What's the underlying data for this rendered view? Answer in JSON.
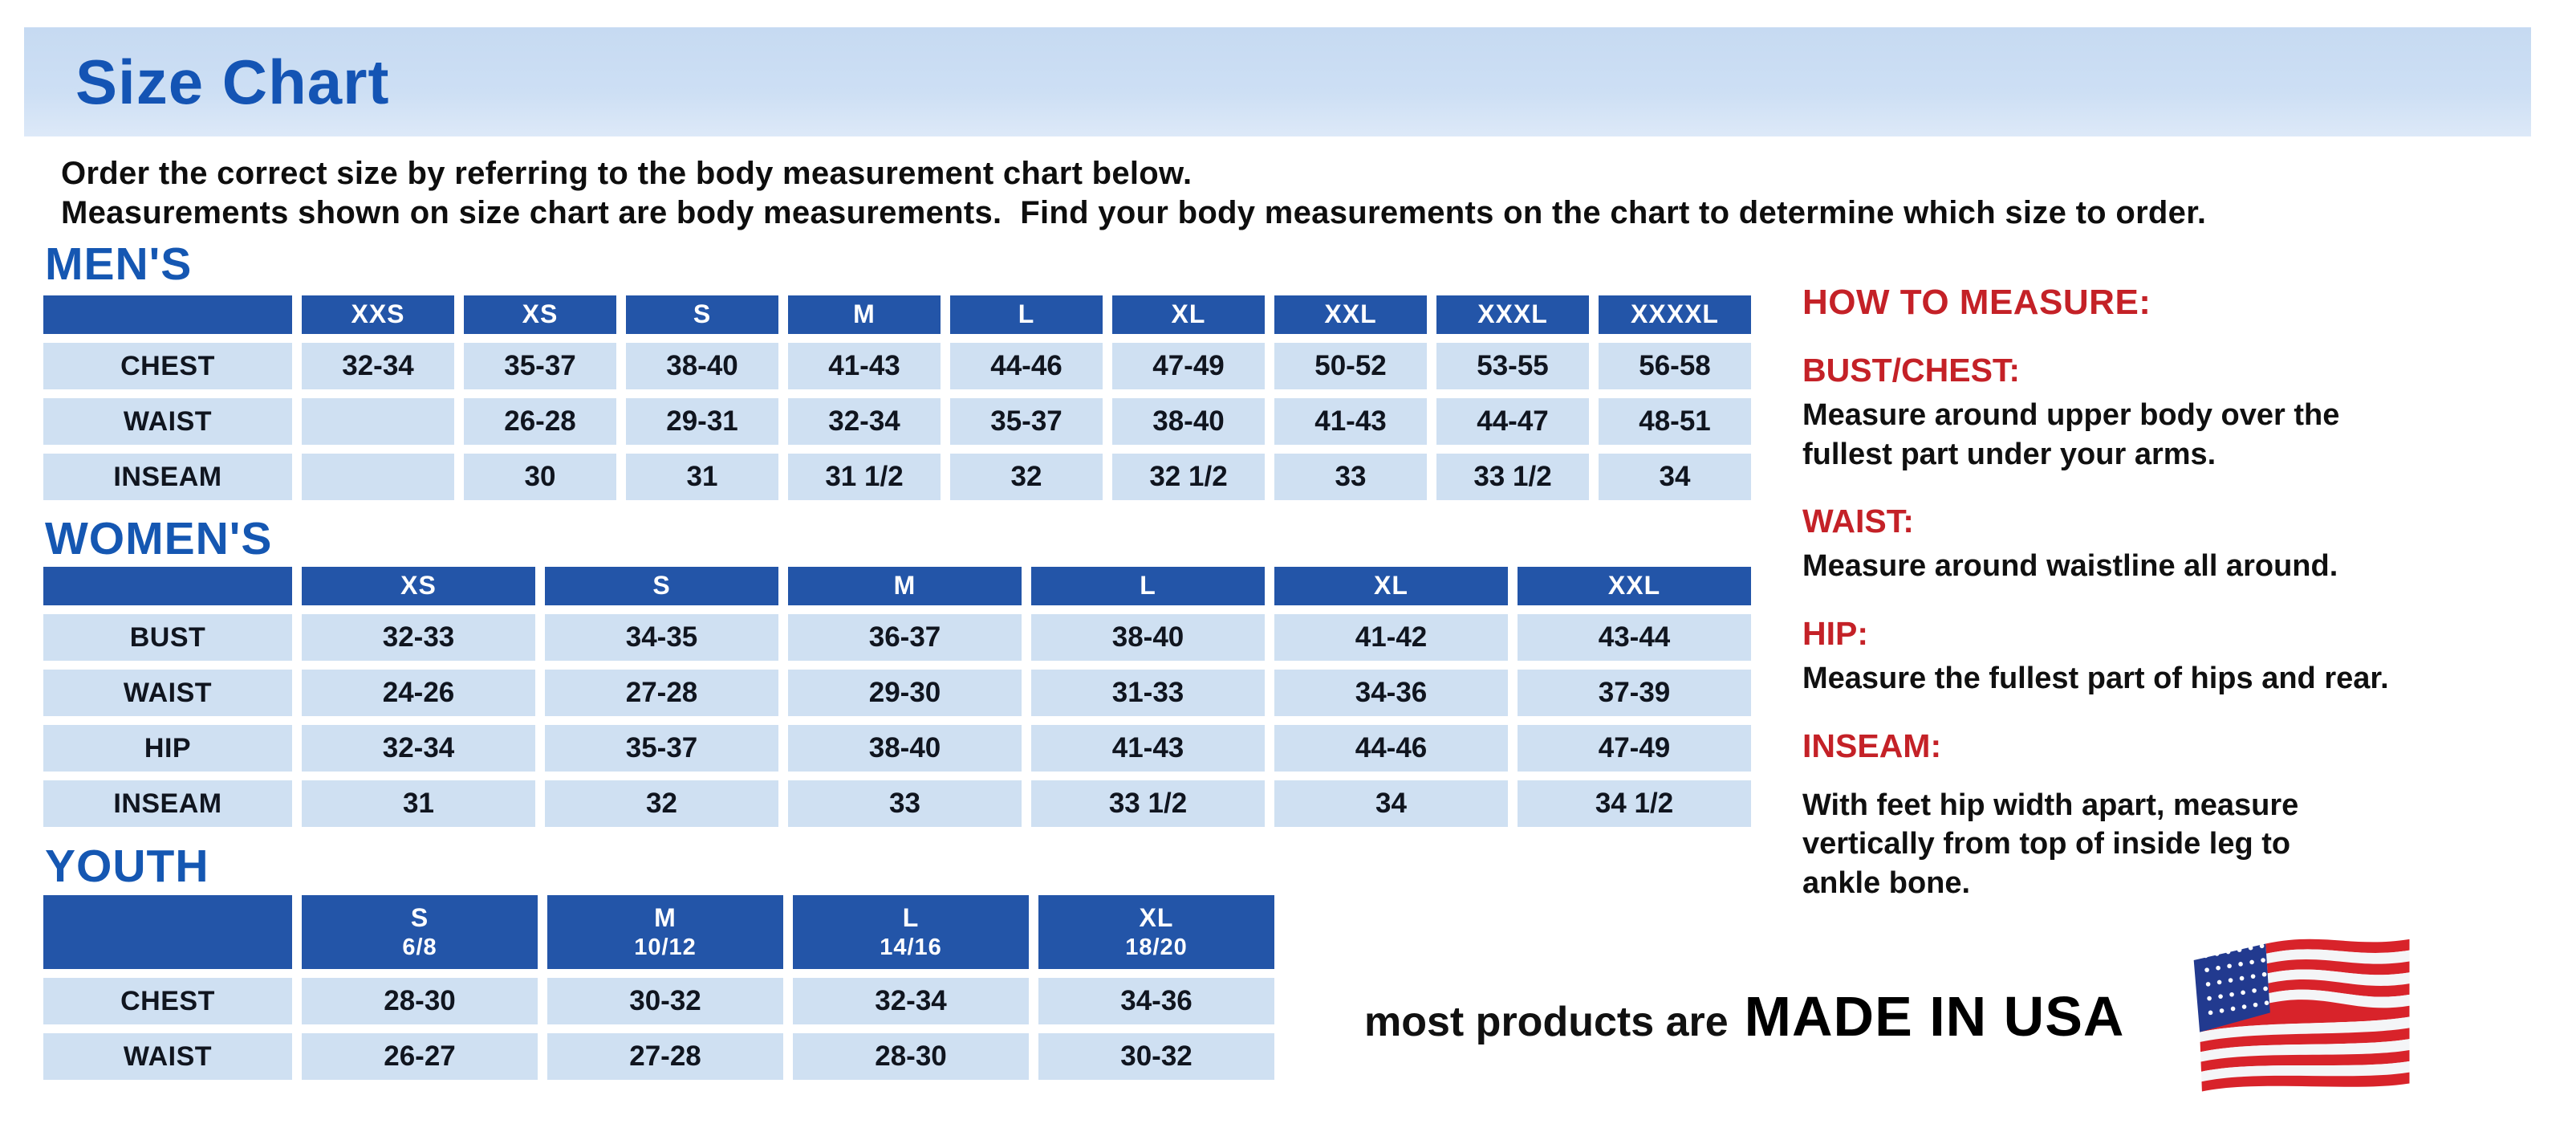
{
  "page": {
    "title": "Size Chart",
    "intro_line1": "Order the correct size by referring to the body measurement chart below.",
    "intro_line2": "Measurements shown on size chart are body measurements.  Find your body measurements on the chart to determine which size to order."
  },
  "tables": {
    "mens": {
      "heading": "MEN'S",
      "columns": [
        "XXS",
        "XS",
        "S",
        "M",
        "L",
        "XL",
        "XXL",
        "XXXL",
        "XXXXL"
      ],
      "rows": [
        {
          "label": "CHEST",
          "values": [
            "32-34",
            "35-37",
            "38-40",
            "41-43",
            "44-46",
            "47-49",
            "50-52",
            "53-55",
            "56-58"
          ]
        },
        {
          "label": "WAIST",
          "values": [
            "",
            "26-28",
            "29-31",
            "32-34",
            "35-37",
            "38-40",
            "41-43",
            "44-47",
            "48-51"
          ]
        },
        {
          "label": "INSEAM",
          "values": [
            "",
            "30",
            "31",
            "31 1/2",
            "32",
            "32 1/2",
            "33",
            "33 1/2",
            "34"
          ]
        }
      ]
    },
    "womens": {
      "heading": "WOMEN'S",
      "columns": [
        "XS",
        "S",
        "M",
        "L",
        "XL",
        "XXL"
      ],
      "rows": [
        {
          "label": "BUST",
          "values": [
            "32-33",
            "34-35",
            "36-37",
            "38-40",
            "41-42",
            "43-44"
          ]
        },
        {
          "label": "WAIST",
          "values": [
            "24-26",
            "27-28",
            "29-30",
            "31-33",
            "34-36",
            "37-39"
          ]
        },
        {
          "label": "HIP",
          "values": [
            "32-34",
            "35-37",
            "38-40",
            "41-43",
            "44-46",
            "47-49"
          ]
        },
        {
          "label": "INSEAM",
          "values": [
            "31",
            "32",
            "33",
            "33 1/2",
            "34",
            "34 1/2"
          ]
        }
      ]
    },
    "youth": {
      "heading": "YOUTH",
      "columns": [
        [
          "S",
          "6/8"
        ],
        [
          "M",
          "10/12"
        ],
        [
          "L",
          "14/16"
        ],
        [
          "XL",
          "18/20"
        ]
      ],
      "rows": [
        {
          "label": "CHEST",
          "values": [
            "28-30",
            "30-32",
            "32-34",
            "34-36"
          ]
        },
        {
          "label": "WAIST",
          "values": [
            "26-27",
            "27-28",
            "28-30",
            "30-32"
          ]
        }
      ]
    }
  },
  "how_to_measure": {
    "heading": "HOW TO MEASURE:",
    "sections": [
      {
        "label": "BUST/CHEST:",
        "lines": [
          "Measure around upper body over the",
          "fullest part under your arms."
        ]
      },
      {
        "label": "WAIST:",
        "lines": [
          "Measure around waistline all around."
        ]
      },
      {
        "label": "HIP:",
        "lines": [
          "Measure the fullest part of hips and rear."
        ]
      },
      {
        "label": "INSEAM:",
        "lines": [
          "With feet hip width apart, measure",
          "vertically from top of inside leg to",
          "ankle bone."
        ]
      }
    ]
  },
  "footer": {
    "prefix": "most products are",
    "emphasis": "MADE IN USA",
    "flag_icon": "usa-flag-icon"
  },
  "colors": {
    "accent_blue": "#1557b2",
    "header_cell_blue": "#2355a8",
    "cell_light_blue": "#cfe0f2",
    "banner_light_blue": "#c9dcf2",
    "heading_red": "#c42127",
    "flag_red": "#d8232a",
    "flag_canton_blue": "#223a8f"
  }
}
